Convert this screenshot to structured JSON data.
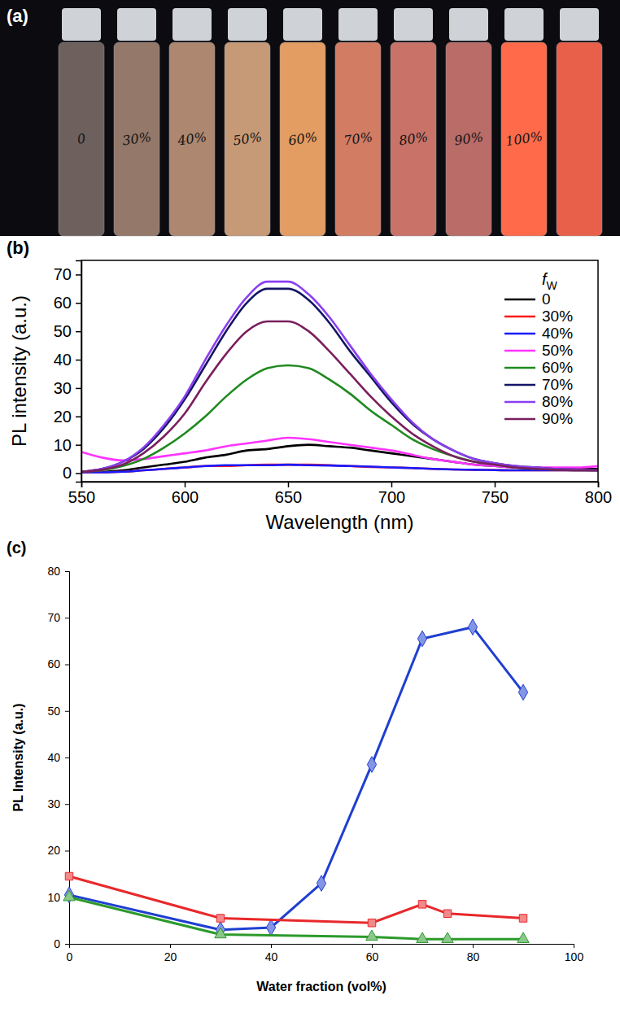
{
  "photo": {
    "panel_label": "(a)",
    "vial_labels": [
      "0",
      "30%",
      "40%",
      "50%",
      "60%",
      "70%",
      "80%",
      "90%",
      "100%",
      null
    ]
  },
  "chart_data": [
    {
      "type": "line",
      "panel_label": "(b)",
      "x_label": "Wavelength (nm)",
      "y_label": "PL intensity (a.u.)",
      "legend_title": "fW",
      "legend": "upper right",
      "grid": false,
      "xlim": [
        550,
        800
      ],
      "xticks": [
        550,
        600,
        650,
        700,
        750,
        800
      ],
      "ylim": [
        -3,
        75
      ],
      "yticks": [
        0,
        10,
        20,
        30,
        40,
        50,
        60,
        70
      ],
      "x": [
        550,
        560,
        570,
        580,
        590,
        600,
        610,
        620,
        630,
        640,
        650,
        660,
        670,
        680,
        690,
        700,
        710,
        720,
        730,
        740,
        750,
        760,
        770,
        780,
        790,
        800
      ],
      "series": [
        {
          "name": "0",
          "color": "#000000",
          "values": [
            0.5,
            0.5,
            1,
            2,
            3,
            4,
            5.5,
            6.5,
            8,
            8.5,
            9.5,
            10,
            9.5,
            9,
            8,
            7,
            6,
            5,
            4,
            3,
            2.5,
            2,
            1.5,
            1.5,
            1.5,
            1.5
          ]
        },
        {
          "name": "30%",
          "color": "#ff1a1a",
          "values": [
            0.3,
            0.3,
            0.5,
            1,
            1.5,
            2,
            2.5,
            2.5,
            2.8,
            3,
            3,
            3,
            2.8,
            2.5,
            2.2,
            2,
            1.8,
            1.5,
            1.3,
            1.2,
            1.1,
            1,
            1,
            1,
            1,
            1
          ]
        },
        {
          "name": "40%",
          "color": "#1a1aff",
          "values": [
            0.3,
            0.3,
            0.5,
            1,
            1.5,
            2,
            2.5,
            2.8,
            2.8,
            2.8,
            3,
            2.8,
            2.7,
            2.5,
            2.3,
            2,
            1.8,
            1.5,
            1.3,
            1.2,
            1.1,
            1,
            1,
            1,
            1,
            1
          ]
        },
        {
          "name": "50%",
          "color": "#ff33ff",
          "values": [
            7.5,
            5.5,
            4.5,
            5,
            6,
            7,
            8,
            9.5,
            10.5,
            11.5,
            12.5,
            12,
            11,
            10,
            9,
            8,
            6.5,
            5,
            4,
            3,
            2.5,
            2,
            2,
            2,
            2,
            2.5
          ]
        },
        {
          "name": "60%",
          "color": "#1f8a1f",
          "values": [
            0.5,
            1,
            2.5,
            5,
            9,
            14,
            20,
            27,
            33,
            37,
            38,
            37,
            33,
            28,
            22,
            17,
            12,
            8.5,
            6,
            4,
            3,
            2,
            1.5,
            1.2,
            1,
            1
          ]
        },
        {
          "name": "70%",
          "color": "#141466",
          "values": [
            0.5,
            1.5,
            4,
            8.5,
            16,
            26,
            38,
            50,
            60,
            65,
            65,
            61,
            53,
            43,
            34,
            25,
            17.5,
            12,
            8,
            5,
            3.5,
            2.5,
            2,
            1.5,
            1.2,
            1
          ]
        },
        {
          "name": "80%",
          "color": "#8a3ff0",
          "values": [
            0.5,
            1.5,
            4,
            9,
            17,
            27,
            40,
            52,
            62,
            67.5,
            67.5,
            63,
            55,
            45,
            35,
            26,
            18,
            12,
            8,
            5,
            3.5,
            2.5,
            2,
            1.5,
            1.2,
            1
          ]
        },
        {
          "name": "90%",
          "color": "#7a1f5e",
          "values": [
            0.5,
            1.2,
            3,
            7,
            13,
            21,
            32,
            42,
            50,
            53.5,
            53.5,
            50,
            43,
            35,
            27,
            20,
            14,
            9.5,
            6,
            4,
            3,
            2,
            1.5,
            1.2,
            1,
            1
          ]
        }
      ]
    },
    {
      "type": "line",
      "panel_label": "(c)",
      "x_label": "Water fraction (vol%)",
      "y_label": "PL Intensity (a.u.)",
      "grid": false,
      "xlim": [
        0,
        100
      ],
      "xticks": [
        0,
        20,
        40,
        60,
        80,
        100
      ],
      "ylim": [
        0,
        80
      ],
      "yticks": [
        0,
        10,
        20,
        30,
        40,
        50,
        60,
        70,
        80
      ],
      "series": [
        {
          "color": "#1f3fd1",
          "marker": "diamond",
          "x": [
            0,
            30,
            40,
            50,
            60,
            70,
            80,
            90
          ],
          "values": [
            10.5,
            3,
            3.5,
            13,
            38.5,
            65.5,
            68,
            54
          ]
        },
        {
          "color": "#e8282b",
          "marker": "square",
          "x": [
            0,
            30,
            60,
            70,
            75,
            90
          ],
          "values": [
            14.5,
            5.5,
            4.5,
            8.5,
            6.5,
            5.5
          ]
        },
        {
          "color": "#2c9a2c",
          "marker": "triangle",
          "x": [
            0,
            30,
            60,
            70,
            75,
            90
          ],
          "values": [
            10,
            2,
            1.5,
            1,
            1,
            1
          ]
        }
      ]
    }
  ]
}
